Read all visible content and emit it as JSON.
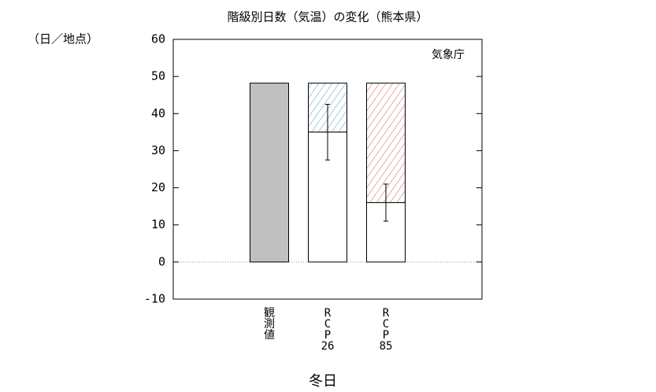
{
  "chart_data": {
    "type": "bar",
    "title": "階級別日数（気温）の変化（熊本県）",
    "y_unit": "（日／地点）",
    "annotation": "気象庁",
    "x_label": "冬日",
    "categories": [
      [
        "観",
        "測",
        "値"
      ],
      [
        "R",
        "C",
        "P",
        "26"
      ],
      [
        "R",
        "C",
        "P",
        "85"
      ]
    ],
    "observed": {
      "values": [
        48.2,
        null,
        null
      ],
      "color": "#c0c0c0"
    },
    "future": {
      "values": [
        null,
        35,
        16
      ],
      "errors": [
        null,
        7.5,
        5
      ],
      "color": "#ffffff"
    },
    "hatch_colors": [
      null,
      "#6ea6c6",
      "#d6776f"
    ],
    "ylim": [
      -10,
      60
    ],
    "yticks": [
      -10,
      0,
      10,
      20,
      30,
      40,
      50,
      60
    ],
    "zero_line": true
  }
}
